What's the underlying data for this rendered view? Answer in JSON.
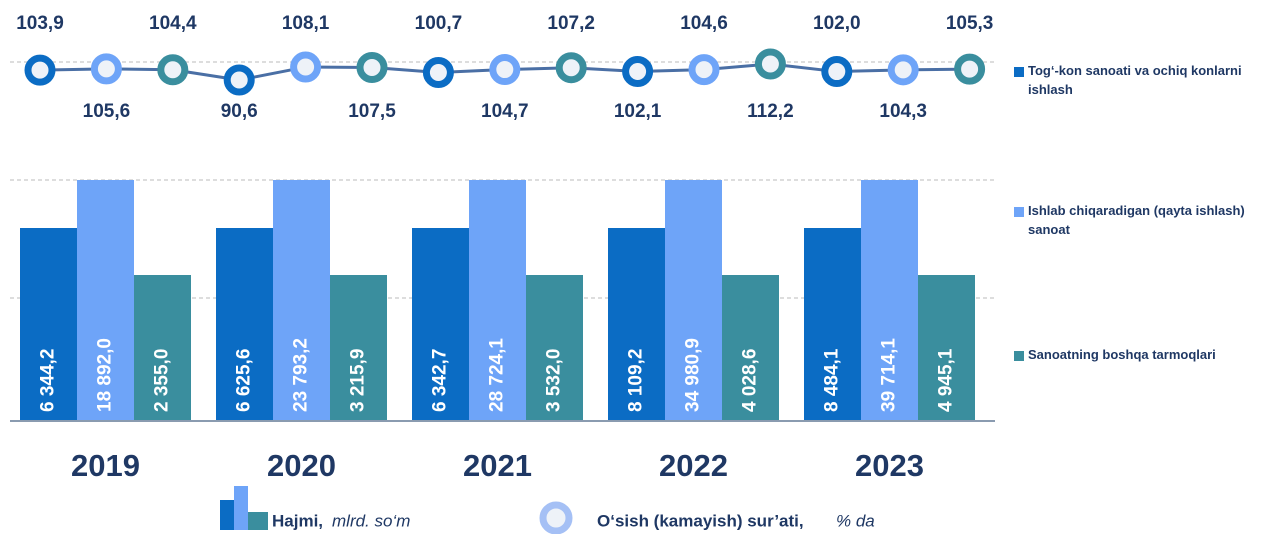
{
  "chart_data": {
    "type": "bar",
    "categories": [
      "2019",
      "2020",
      "2021",
      "2022",
      "2023"
    ],
    "series": [
      {
        "name": "Tog‘-kon sanoati va ochiq konlarni ishlash",
        "color": "#0b6cc4",
        "values": [
          6344.2,
          6625.6,
          6342.7,
          8109.2,
          8484.1
        ],
        "value_labels": [
          "6 344,2",
          "6 625,6",
          "6 342,7",
          "8 109,2",
          "8 484,1"
        ],
        "growth": [
          103.9,
          90.6,
          100.7,
          102.1,
          102.0
        ],
        "growth_labels": [
          "103,9",
          "90,6",
          "100,7",
          "102,1",
          "102,0"
        ]
      },
      {
        "name": "Ishlab chiqaradigan (qayta ishlash) sanoat",
        "color": "#6ea4f8",
        "values": [
          18892.0,
          23793.2,
          28724.1,
          34980.9,
          39714.1
        ],
        "value_labels": [
          "18 892,0",
          "23 793,2",
          "28 724,1",
          "34 980,9",
          "39 714,1"
        ],
        "growth": [
          105.6,
          108.1,
          104.7,
          104.6,
          104.3
        ],
        "growth_labels": [
          "105,6",
          "108,1",
          "104,7",
          "104,6",
          "104,3"
        ]
      },
      {
        "name": "Sanoatning boshqa tarmoqlari",
        "color": "#3a8e9e",
        "values": [
          2355.0,
          3215.9,
          3532.0,
          4028.6,
          4945.1
        ],
        "value_labels": [
          "2 355,0",
          "3 215,9",
          "3 532,0",
          "4 028,6",
          "4 945,1"
        ],
        "growth": [
          104.4,
          107.5,
          107.2,
          112.2,
          105.3
        ],
        "growth_labels": [
          "104,4",
          "107,5",
          "107,2",
          "112,2",
          "105,3"
        ]
      }
    ],
    "bar_legend": {
      "name": "Hajmi,",
      "unit": "mlrd. so‘m"
    },
    "line_legend": {
      "name": "O‘sish (kamayish) sur’ati,",
      "unit": "% da"
    }
  }
}
